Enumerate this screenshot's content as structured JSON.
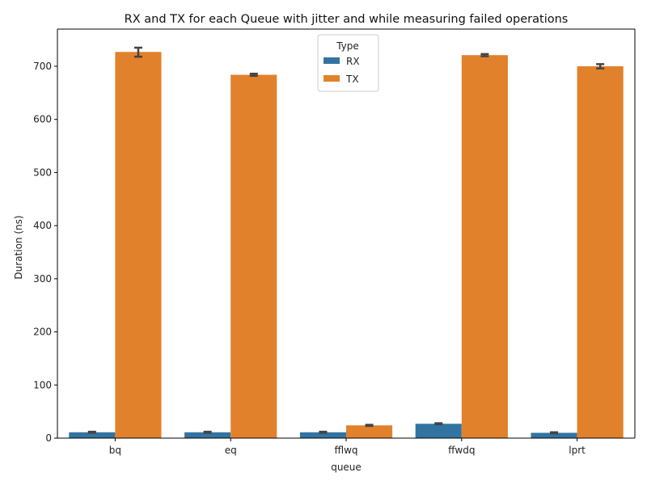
{
  "chart_data": {
    "type": "bar",
    "title": "RX and TX for each Queue with jitter and while measuring failed operations",
    "xlabel": "queue",
    "ylabel": "Duration (ns)",
    "categories": [
      "bq",
      "eq",
      "fflwq",
      "ffwdq",
      "lprt"
    ],
    "ylim": [
      0,
      770
    ],
    "yticks": [
      0,
      100,
      200,
      300,
      400,
      500,
      600,
      700
    ],
    "grid": false,
    "legend": {
      "title": "Type",
      "placement": "top-center"
    },
    "series": [
      {
        "name": "RX",
        "color": "#3274a1",
        "values": [
          11,
          11,
          11,
          27,
          10
        ],
        "err_low": [
          10,
          10,
          10,
          26,
          9
        ],
        "err_high": [
          12,
          12,
          12,
          28,
          11
        ]
      },
      {
        "name": "TX",
        "color": "#e1812c",
        "values": [
          727,
          684,
          24,
          721,
          700
        ],
        "err_low": [
          718,
          682,
          23,
          719,
          696
        ],
        "err_high": [
          735,
          686,
          25,
          723,
          704
        ]
      }
    ]
  }
}
